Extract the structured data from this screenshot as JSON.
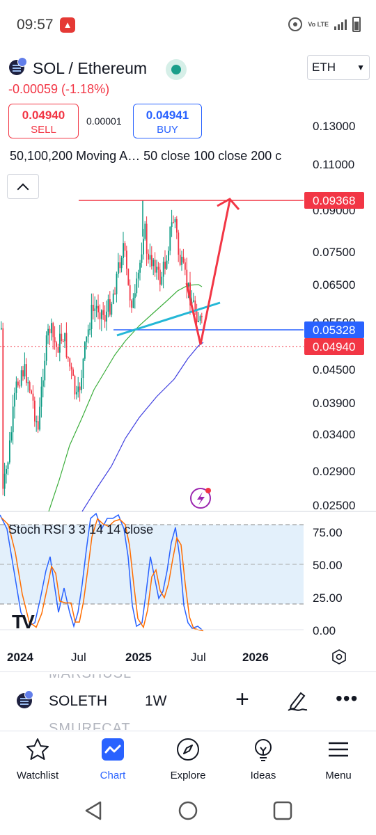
{
  "status_bar": {
    "time": "09:57",
    "network_label": "Vo LTE"
  },
  "header": {
    "symbol_title": "SOL / Ethereum",
    "currency": "ETH",
    "change": "-0.00059 (-1.18%)",
    "sell": {
      "price": "0.04940",
      "label": "SELL"
    },
    "buy": {
      "price": "0.04941",
      "label": "BUY"
    },
    "spread": "0.00001"
  },
  "indicator_label": "50,100,200 Moving A… 50 close 100 close 200 c",
  "rsi_label": "Stoch RSI 3 3 14 14 close",
  "chart_data": {
    "type": "candlestick",
    "price_axis": [
      "0.13000",
      "0.11000",
      "0.09000",
      "0.07500",
      "0.06500",
      "0.05500",
      "0.04500",
      "0.03900",
      "0.03400",
      "0.02900",
      "0.02500"
    ],
    "price_tags": [
      {
        "value": "0.09368",
        "color": "#f23645"
      },
      {
        "value": "0.05328",
        "color": "#2962ff"
      },
      {
        "value": "0.04940",
        "color": "#f23645"
      }
    ],
    "rsi_axis": [
      "75.00",
      "50.00",
      "25.00",
      "0.00"
    ],
    "time_axis": [
      "2024",
      "Jul",
      "2025",
      "Jul",
      "2026"
    ],
    "colors": {
      "up": "#089981",
      "down": "#f23645",
      "ma50": "#17a2b8",
      "ma100": "#3cae3c",
      "ma200": "#3f3fe0",
      "rsi_k": "#2962ff",
      "rsi_d": "#ff6d00",
      "drawing": "#f23645"
    }
  },
  "watermark": {
    "top": "MARSHUSL",
    "bottom": "SMURFCAT"
  },
  "symbol_bar": {
    "symbol": "SOLETH",
    "interval": "1W",
    "plus": "+",
    "more": "•••"
  },
  "nav": [
    {
      "label": "Watchlist",
      "icon": "star-icon"
    },
    {
      "label": "Chart",
      "icon": "chart-icon",
      "active": true
    },
    {
      "label": "Explore",
      "icon": "compass-icon"
    },
    {
      "label": "Ideas",
      "icon": "lightbulb-icon"
    },
    {
      "label": "Menu",
      "icon": "menu-icon"
    }
  ]
}
